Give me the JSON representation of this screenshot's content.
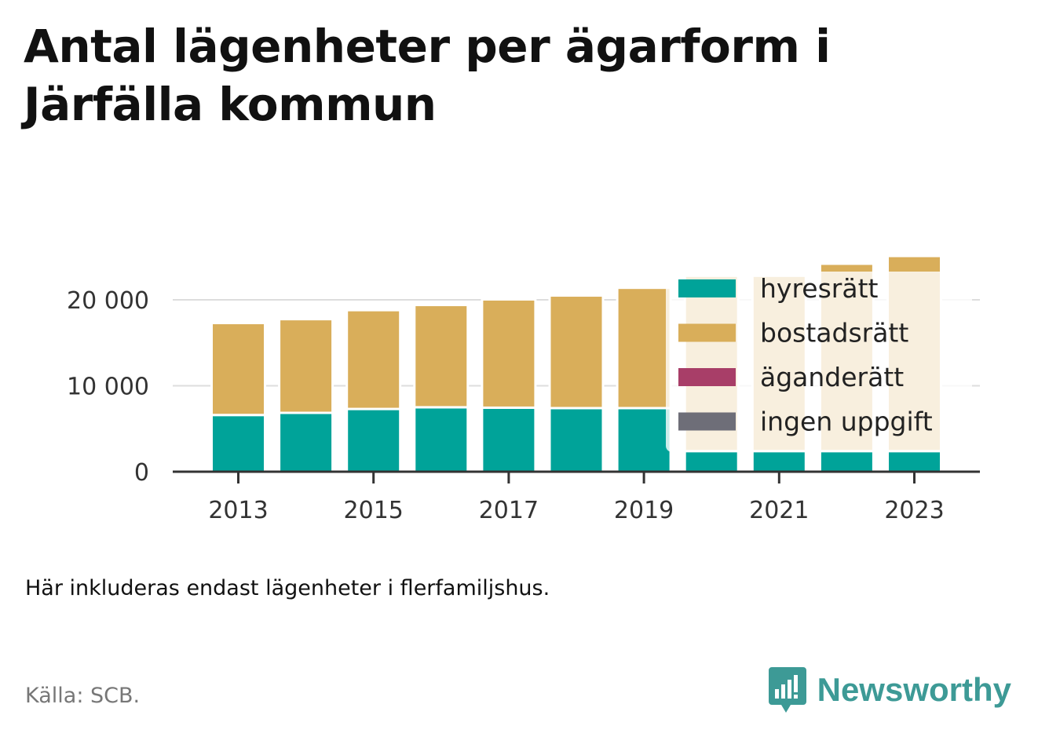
{
  "title": "Antal lägenheter per ägarform i Järfälla kommun",
  "note": "Här inkluderas endast lägenheter i flerfamiljshus.",
  "source": "Källa: SCB.",
  "logo_text": "Newsworthy",
  "chart_data": {
    "type": "bar",
    "stacked": true,
    "categories": [
      "2013",
      "2014",
      "2015",
      "2016",
      "2017",
      "2018",
      "2019",
      "2020",
      "2021",
      "2022",
      "2023"
    ],
    "x_tick_labels": [
      "2013",
      "2015",
      "2017",
      "2019",
      "2021",
      "2023"
    ],
    "y_ticks": [
      0,
      10000,
      20000
    ],
    "y_tick_labels": [
      "0",
      "10 000",
      "20 000"
    ],
    "ylim": [
      0,
      25500
    ],
    "grid": true,
    "legend_position": "top-right",
    "series": [
      {
        "name": "hyresrätt",
        "color": "#00a399",
        "values": [
          6600,
          6850,
          7300,
          7500,
          7450,
          7400,
          7400,
          2400,
          2400,
          2400,
          2400
        ]
      },
      {
        "name": "bostadsrätt",
        "color": "#d9ae5a",
        "values": [
          10700,
          10900,
          11500,
          11900,
          12600,
          13100,
          14000,
          20400,
          20400,
          21800,
          22700
        ]
      },
      {
        "name": "äganderätt",
        "color": "#a83e68",
        "values": [
          0,
          0,
          0,
          0,
          0,
          0,
          0,
          0,
          0,
          0,
          0
        ]
      },
      {
        "name": "ingen uppgift",
        "color": "#6e6e78",
        "values": [
          0,
          0,
          0,
          0,
          0,
          0,
          0,
          0,
          0,
          0,
          0
        ]
      }
    ]
  }
}
